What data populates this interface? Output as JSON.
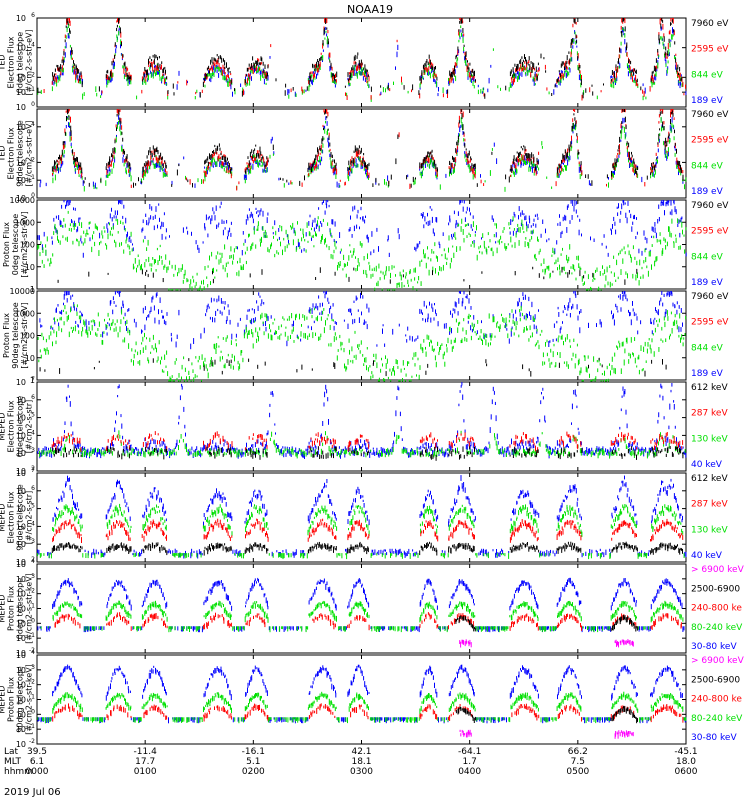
{
  "title": "NOAA19",
  "date": "2019 Jul 06",
  "colors": {
    "black": "#000000",
    "red": "#ff0000",
    "green": "#00e000",
    "blue": "#0000ff",
    "magenta": "#ff00ff"
  },
  "chart_data": [
    {
      "type": "scatter",
      "id": "ted_e0",
      "ylabel": [
        "TED",
        "Electron Flux",
        "0deg telescope",
        "[#/cm2-s-str-eV]"
      ],
      "yticks": [
        {
          "e": 6
        },
        {
          "e": 4
        },
        {
          "e": 2
        },
        {
          "e": 1
        },
        {
          "e": 0
        }
      ],
      "ylim_log": [
        0,
        6
      ],
      "legend": [
        {
          "text": "7960 eV",
          "color": "black"
        },
        {
          "text": "2595 eV",
          "color": "red"
        },
        {
          "text": "844 eV",
          "color": "green"
        },
        {
          "text": "189 eV",
          "color": "blue"
        }
      ],
      "series_profile": "ted_e"
    },
    {
      "type": "scatter",
      "id": "ted_e90",
      "ylabel": [
        "TED",
        "Electron Flux",
        "90deg telescope",
        "[#/cm2-s-str-eV]"
      ],
      "yticks": [
        {
          "e": 4
        },
        {
          "e": 2
        },
        {
          "e": 1
        },
        {
          "e": 0
        }
      ],
      "ylim_log": [
        0,
        5
      ],
      "legend": [
        {
          "text": "7960 eV",
          "color": "black"
        },
        {
          "text": "2595 eV",
          "color": "red"
        },
        {
          "text": "844 eV",
          "color": "green"
        },
        {
          "text": "189 eV",
          "color": "blue"
        }
      ],
      "series_profile": "ted_e"
    },
    {
      "type": "scatter",
      "id": "ted_p0",
      "ylabel": [
        "Proton Flux",
        "0deg telescope",
        "[#/cm2-s-str-eV]"
      ],
      "yticks": [
        {
          "t": "10000",
          "v": 4
        },
        {
          "t": "1000",
          "v": 3
        },
        {
          "t": "100",
          "v": 2
        },
        {
          "t": "10",
          "v": 1
        },
        {
          "t": "1",
          "v": 0
        }
      ],
      "ylim_log": [
        0,
        4
      ],
      "legend": [
        {
          "text": "7960 eV",
          "color": "black"
        },
        {
          "text": "2595 eV",
          "color": "red"
        },
        {
          "text": "844 eV",
          "color": "green"
        },
        {
          "text": "189 eV",
          "color": "blue"
        }
      ],
      "series_profile": "ted_p"
    },
    {
      "type": "scatter",
      "id": "ted_p90",
      "ylabel": [
        "Proton Flux",
        "90deg telescope",
        "[#/cm2-s-str-eV]"
      ],
      "yticks": [
        {
          "t": "10000",
          "v": 4
        },
        {
          "t": "1000",
          "v": 3
        },
        {
          "t": "100",
          "v": 2
        },
        {
          "t": "10",
          "v": 1
        },
        {
          "t": "1",
          "v": 0
        }
      ],
      "ylim_log": [
        0,
        4
      ],
      "legend": [
        {
          "text": "7960 eV",
          "color": "black"
        },
        {
          "text": "2595 eV",
          "color": "red"
        },
        {
          "text": "844 eV",
          "color": "green"
        },
        {
          "text": "189 eV",
          "color": "blue"
        }
      ],
      "series_profile": "ted_p"
    },
    {
      "type": "scatter",
      "id": "meped_e0",
      "ylabel": [
        "MEPED",
        "Electron Flux",
        "0deg telescope",
        "[#/cm2-s-str]"
      ],
      "yticks": [
        {
          "e": 7
        },
        {
          "e": 6
        },
        {
          "e": 5
        },
        {
          "e": 4
        },
        {
          "e": 3
        },
        {
          "e": 2
        }
      ],
      "ylim_log": [
        2,
        7
      ],
      "legend": [
        {
          "text": "612 keV",
          "color": "black"
        },
        {
          "text": "287 keV",
          "color": "red"
        },
        {
          "text": "130 keV",
          "color": "green"
        },
        {
          "text": "40 keV",
          "color": "blue"
        }
      ],
      "series_profile": "meped_e0"
    },
    {
      "type": "scatter",
      "id": "meped_e90",
      "ylabel": [
        "MEPED",
        "Electron Flux",
        "90deg telescope",
        "[#/cm2-s-str]"
      ],
      "yticks": [
        {
          "e": 7
        },
        {
          "e": 6
        },
        {
          "e": 5
        },
        {
          "e": 4
        },
        {
          "e": 3
        },
        {
          "e": 2
        }
      ],
      "ylim_log": [
        2,
        7
      ],
      "legend": [
        {
          "text": "612 keV",
          "color": "black"
        },
        {
          "text": "287 keV",
          "color": "red"
        },
        {
          "text": "130 keV",
          "color": "green"
        },
        {
          "text": "40 keV",
          "color": "blue"
        }
      ],
      "series_profile": "meped_e90"
    },
    {
      "type": "scatter",
      "id": "meped_p0",
      "ylabel": [
        "MEPED",
        "Proton Flux",
        "0deg telescope",
        "[#/cm2-s-str-keV]"
      ],
      "yticks": [
        {
          "e": 4
        },
        {
          "e": 3
        },
        {
          "e": 2
        },
        {
          "e": 1
        },
        {
          "e": 0
        },
        {
          "e": -1
        },
        {
          "e": -2
        }
      ],
      "ylim_log": [
        -2,
        4
      ],
      "legend": [
        {
          "text": "> 6900 keV",
          "color": "magenta"
        },
        {
          "text": "2500-6900",
          "color": "black"
        },
        {
          "text": "240-800 ke",
          "color": "red"
        },
        {
          "text": "80-240 keV",
          "color": "green"
        },
        {
          "text": "30-80 keV",
          "color": "blue"
        }
      ],
      "series_profile": "meped_p0"
    },
    {
      "type": "scatter",
      "id": "meped_p90",
      "ylabel": [
        "MEPED",
        "Proton Flux",
        "90deg telescope",
        "[#/cm2-s-str-keV]"
      ],
      "yticks": [
        {
          "e": 4
        },
        {
          "e": 3
        },
        {
          "e": 2
        },
        {
          "e": 1
        },
        {
          "e": 0
        },
        {
          "e": -1
        },
        {
          "e": -2
        }
      ],
      "ylim_log": [
        -2,
        4
      ],
      "legend": [
        {
          "text": "> 6900 keV",
          "color": "magenta"
        },
        {
          "text": "2500-6900",
          "color": "black"
        },
        {
          "text": "240-800 ke",
          "color": "red"
        },
        {
          "text": "80-240 keV",
          "color": "green"
        },
        {
          "text": "30-80 keV",
          "color": "blue"
        }
      ],
      "series_profile": "meped_p90"
    }
  ],
  "xaxis": {
    "row_labels": [
      "Lat",
      "MLT",
      "hhmm"
    ],
    "ticks": [
      {
        "t": 0,
        "lat": "39.5",
        "mlt": "6.1",
        "hhmm": "0000"
      },
      {
        "t": 60,
        "lat": "-11.4",
        "mlt": "17.7",
        "hhmm": "0100"
      },
      {
        "t": 120,
        "lat": "-16.1",
        "mlt": "5.1",
        "hhmm": "0200"
      },
      {
        "t": 180,
        "lat": "42.1",
        "mlt": "18.1",
        "hhmm": "0300"
      },
      {
        "t": 240,
        "lat": "-64.1",
        "mlt": "1.7",
        "hhmm": "0400"
      },
      {
        "t": 300,
        "lat": "66.2",
        "mlt": "7.5",
        "hhmm": "0500"
      },
      {
        "t": 360,
        "lat": "-45.1",
        "mlt": "18.0",
        "hhmm": "0600"
      }
    ],
    "range_minutes": [
      0,
      360
    ]
  }
}
